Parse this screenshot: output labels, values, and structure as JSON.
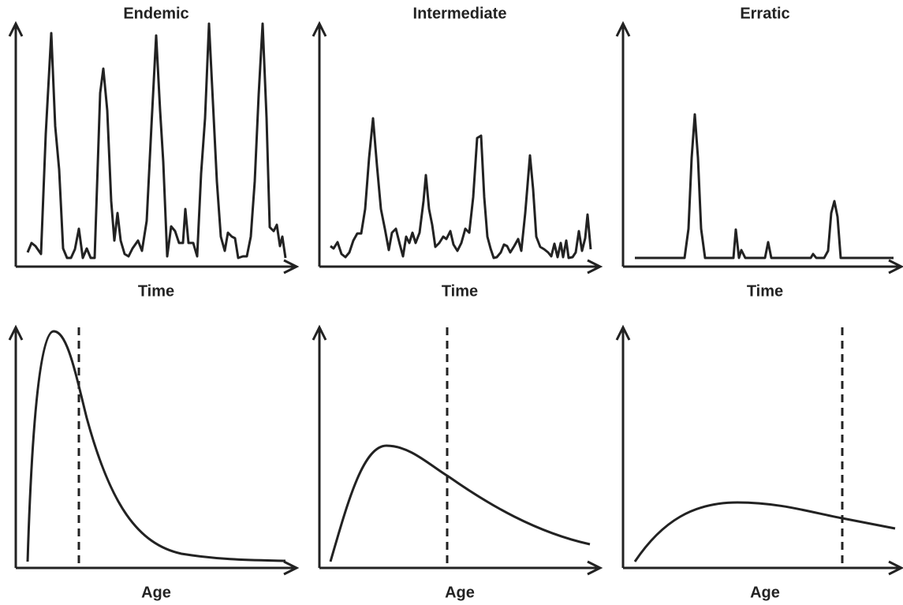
{
  "panels": [
    {
      "title": "Endemic",
      "top_x_label": "Time",
      "bottom_x_label": "Age"
    },
    {
      "title": "Intermediate",
      "top_x_label": "Time",
      "bottom_x_label": "Age"
    },
    {
      "title": "Erratic",
      "top_x_label": "Time",
      "bottom_x_label": "Age"
    }
  ]
}
